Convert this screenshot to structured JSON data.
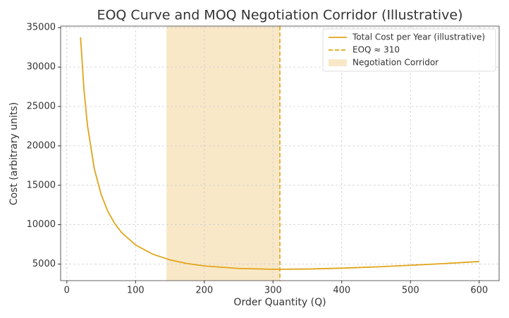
{
  "chart_data": {
    "type": "line",
    "title": "EOQ Curve and MOQ Negotiation Corridor (Illustrative)",
    "x_label": "Order Quantity (Q)",
    "y_label": "Cost (arbitrary units)",
    "x": [
      20,
      25,
      30,
      40,
      50,
      60,
      70,
      80,
      100,
      125,
      150,
      175,
      200,
      250,
      300,
      310,
      350,
      400,
      450,
      500,
      550,
      600
    ],
    "series": [
      {
        "name": "Total Cost per Year (illustrative)",
        "color": "#e0a419",
        "values": [
          33775,
          27083,
          22633,
          17098,
          13804,
          11632,
          10100,
          8969,
          7427,
          6257,
          5535,
          5069,
          4764,
          4441,
          4342,
          4340,
          4372,
          4482,
          4645,
          4845,
          5073,
          5321
        ]
      }
    ],
    "eoq": {
      "name": "EOQ ≈ 310",
      "value": 310,
      "color": "#e0a419"
    },
    "corridor": {
      "name": "Negotiation Corridor",
      "range": [
        145,
        310
      ],
      "color": "#f9e8c8"
    },
    "xlim": [
      -9,
      629
    ],
    "ylim": [
      2900,
      35200
    ],
    "xticks": [
      0,
      100,
      200,
      300,
      400,
      500,
      600
    ],
    "yticks": [
      5000,
      10000,
      15000,
      20000,
      25000,
      30000,
      35000
    ],
    "grid": true,
    "legend": "upper right"
  }
}
